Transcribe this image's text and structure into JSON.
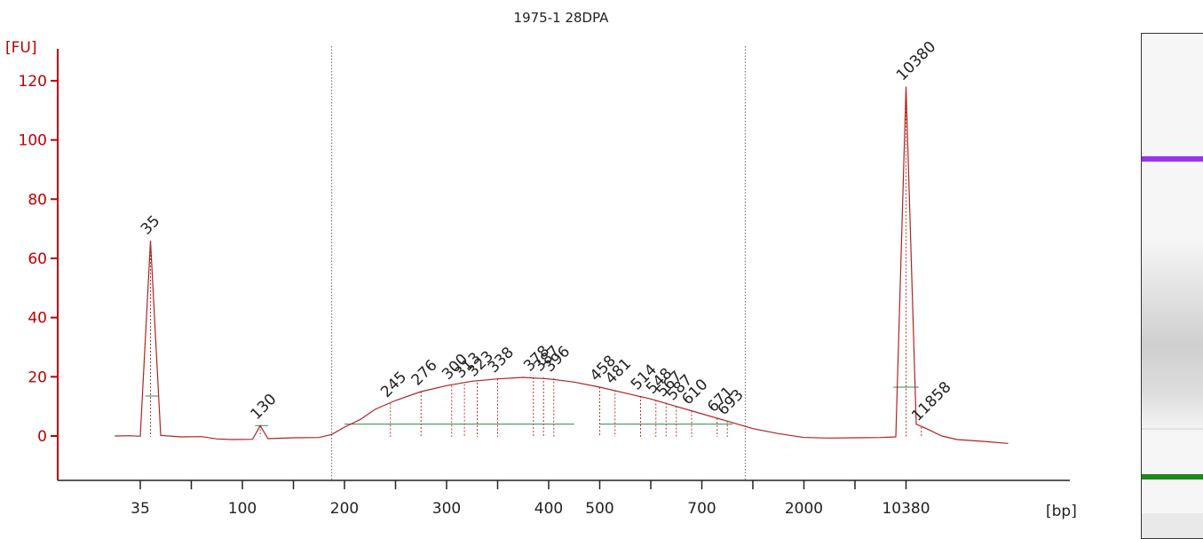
{
  "chart_data": {
    "type": "line",
    "title": "1975-1 28DPA",
    "ylabel": "[FU]",
    "xlabel": "[bp]",
    "ylim": [
      -15,
      130
    ],
    "yticks": [
      0,
      20,
      40,
      60,
      80,
      100,
      120
    ],
    "xtick_labels": [
      "35",
      "",
      "100",
      "",
      "200",
      "",
      "300",
      "",
      "400",
      "500",
      "",
      "700",
      "",
      "2000",
      "",
      "10380"
    ],
    "grid": false,
    "series": [
      {
        "values": [
          [
            -0.5,
            0
          ],
          [
            -0.2,
            0.1
          ],
          [
            0,
            -0.1
          ],
          [
            0.2,
            66
          ],
          [
            0.4,
            0.2
          ],
          [
            0.8,
            -0.3
          ],
          [
            1.2,
            -0.2
          ],
          [
            1.5,
            -1
          ],
          [
            1.8,
            -1.2
          ],
          [
            2.2,
            -1.1
          ],
          [
            2.35,
            3.5
          ],
          [
            2.5,
            -0.9
          ],
          [
            3,
            -0.6
          ],
          [
            3.5,
            -0.5
          ],
          [
            3.75,
            0.5
          ],
          [
            4,
            3
          ],
          [
            4.3,
            5.5
          ],
          [
            4.6,
            9
          ],
          [
            5,
            12
          ],
          [
            5.5,
            15
          ],
          [
            6,
            17
          ],
          [
            6.5,
            18.5
          ],
          [
            7,
            19.3
          ],
          [
            7.5,
            19.8
          ],
          [
            8,
            19.3
          ],
          [
            8.5,
            18.2
          ],
          [
            9,
            16.5
          ],
          [
            9.5,
            14.5
          ],
          [
            10,
            12.5
          ],
          [
            10.5,
            10
          ],
          [
            11,
            7.5
          ],
          [
            11.5,
            5
          ],
          [
            12,
            2.5
          ],
          [
            12.5,
            0.8
          ],
          [
            13,
            -0.5
          ],
          [
            13.5,
            -0.7
          ],
          [
            14,
            -0.6
          ],
          [
            14.5,
            -0.5
          ],
          [
            14.8,
            -0.3
          ],
          [
            15,
            118
          ],
          [
            15.2,
            4
          ],
          [
            15.4,
            2.5
          ],
          [
            15.7,
            0
          ],
          [
            16,
            -1.2
          ],
          [
            16.5,
            -1.8
          ],
          [
            17,
            -2.5
          ]
        ]
      }
    ],
    "peaks": [
      {
        "label": "35",
        "pos": 0.2,
        "fu": 66,
        "color": "#008000"
      },
      {
        "label": "130",
        "pos": 2.35,
        "fu": 3.5,
        "color": "#222222"
      },
      {
        "label": "245",
        "pos": 4.9,
        "fu": 11,
        "color": "#222222"
      },
      {
        "label": "276",
        "pos": 5.5,
        "fu": 15,
        "color": "#222222"
      },
      {
        "label": "300",
        "pos": 6.1,
        "fu": 17,
        "color": "#222222"
      },
      {
        "label": "313",
        "pos": 6.35,
        "fu": 17.5,
        "color": "#222222"
      },
      {
        "label": "323",
        "pos": 6.6,
        "fu": 18,
        "color": "#222222"
      },
      {
        "label": "338",
        "pos": 7.0,
        "fu": 19.3,
        "color": "#222222"
      },
      {
        "label": "378",
        "pos": 7.7,
        "fu": 19.8,
        "color": "#222222"
      },
      {
        "label": "387",
        "pos": 7.9,
        "fu": 19.8,
        "color": "#222222"
      },
      {
        "label": "396",
        "pos": 8.1,
        "fu": 19.6,
        "color": "#222222"
      },
      {
        "label": "458",
        "pos": 9.0,
        "fu": 16.5,
        "color": "#222222"
      },
      {
        "label": "481",
        "pos": 9.3,
        "fu": 15.5,
        "color": "#222222"
      },
      {
        "label": "514",
        "pos": 9.8,
        "fu": 13.5,
        "color": "#222222"
      },
      {
        "label": "548",
        "pos": 10.1,
        "fu": 12.2,
        "color": "#222222"
      },
      {
        "label": "567",
        "pos": 10.3,
        "fu": 11.2,
        "color": "#222222"
      },
      {
        "label": "587",
        "pos": 10.5,
        "fu": 10,
        "color": "#222222"
      },
      {
        "label": "610",
        "pos": 10.8,
        "fu": 8.5,
        "color": "#222222"
      },
      {
        "label": "671",
        "pos": 11.3,
        "fu": 6,
        "color": "#222222"
      },
      {
        "label": "693",
        "pos": 11.5,
        "fu": 5,
        "color": "#222222"
      },
      {
        "label": "10380",
        "pos": 15.0,
        "fu": 118,
        "color": "#9933cc"
      },
      {
        "label": "11858",
        "pos": 15.3,
        "fu": 3,
        "color": "#222222"
      }
    ],
    "region_markers": [
      3.75,
      11.85
    ],
    "colors": {
      "axis": "#c00000",
      "trace": "#b22222",
      "lower_marker": "#008000",
      "upper_marker": "#9933cc"
    }
  }
}
